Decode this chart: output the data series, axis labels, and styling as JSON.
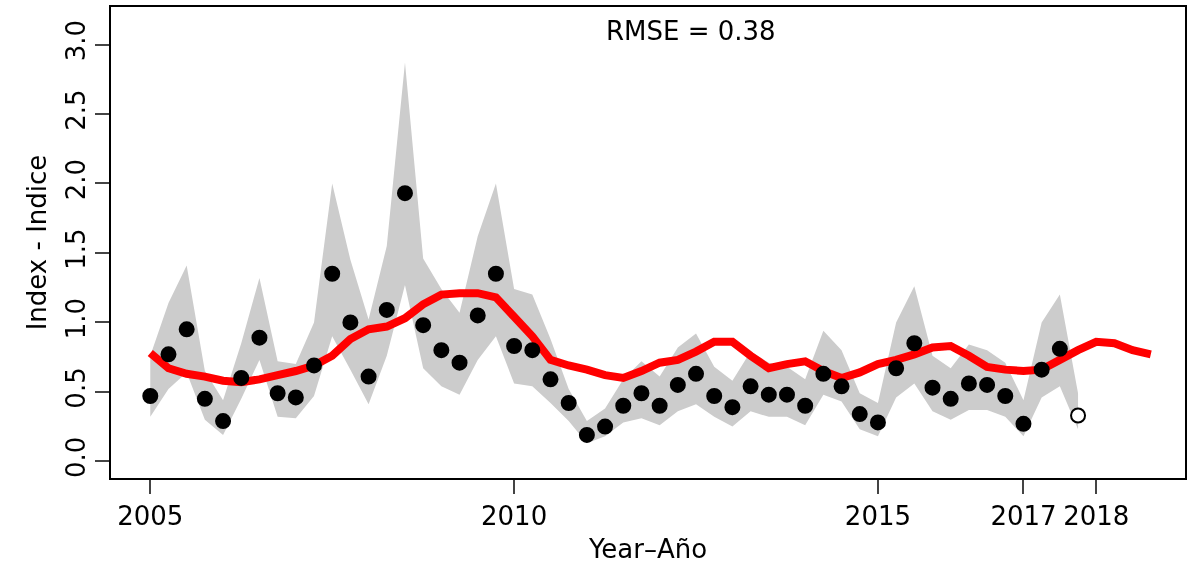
{
  "chart_data": {
    "type": "scatter",
    "xlabel": "Year–Año",
    "ylabel": "Index - Indice",
    "annotations": [
      "RMSE = 0.38"
    ],
    "xlim": [
      2004.46,
      2019.22
    ],
    "xticks": [
      2005,
      2010,
      2015,
      2017,
      2018
    ],
    "ylim": [
      -0.12,
      3.27
    ],
    "yticks": [
      {
        "value": 0,
        "label": "0.0"
      },
      0.5,
      {
        "value": 1,
        "label": "1.0"
      },
      1.5,
      {
        "value": 2,
        "label": "2.0"
      },
      2.5,
      {
        "value": 3,
        "label": "3.0"
      }
    ],
    "grid": false,
    "marker": "circle",
    "series": [
      {
        "color": "#000000",
        "x": [
          2005,
          2005.25,
          2005.5,
          2005.75,
          2006,
          2006.25,
          2006.5,
          2006.75,
          2007,
          2007.25,
          2007.5,
          2007.75,
          2008,
          2008.25,
          2008.5,
          2008.75,
          2009,
          2009.25,
          2009.5,
          2009.75,
          2010,
          2010.25,
          2010.5,
          2010.75,
          2011,
          2011.25,
          2011.5,
          2011.75,
          2012,
          2012.25,
          2012.5,
          2012.75,
          2013,
          2013.25,
          2013.5,
          2013.75,
          2014,
          2014.25,
          2014.5,
          2014.75,
          2015,
          2015.25,
          2015.5,
          2015.75,
          2016,
          2016.25,
          2016.5,
          2016.75,
          2017,
          2017.25,
          2017.5,
          2017.75
        ],
        "values": [
          0.47,
          0.77,
          0.95,
          0.45,
          0.29,
          0.6,
          0.89,
          0.49,
          0.46,
          0.69,
          1.35,
          1.0,
          0.61,
          1.09,
          1.93,
          0.98,
          0.8,
          0.71,
          1.05,
          1.35,
          0.83,
          0.8,
          0.59,
          0.42,
          0.19,
          0.25,
          0.4,
          0.49,
          0.4,
          0.55,
          0.63,
          0.47,
          0.39,
          0.54,
          0.48,
          0.48,
          0.4,
          0.63,
          0.54,
          0.34,
          0.28,
          0.67,
          0.85,
          0.53,
          0.45,
          0.56,
          0.55,
          0.47,
          0.27,
          0.66,
          0.81,
          null
        ],
        "lower": [
          0.32,
          0.52,
          0.64,
          0.3,
          0.19,
          0.45,
          0.73,
          0.32,
          0.31,
          0.47,
          0.9,
          0.66,
          0.41,
          0.76,
          1.27,
          0.67,
          0.54,
          0.48,
          0.73,
          0.9,
          0.56,
          0.54,
          0.42,
          0.29,
          0.13,
          0.18,
          0.28,
          0.31,
          0.26,
          0.36,
          0.41,
          0.32,
          0.25,
          0.36,
          0.32,
          0.32,
          0.26,
          0.48,
          0.43,
          0.23,
          0.18,
          0.46,
          0.56,
          0.36,
          0.3,
          0.37,
          0.37,
          0.32,
          0.18,
          0.46,
          0.54,
          0.23
        ],
        "upper": [
          0.76,
          1.14,
          1.41,
          0.65,
          0.44,
          0.85,
          1.32,
          0.72,
          0.7,
          1.0,
          2.0,
          1.45,
          1.02,
          1.55,
          2.87,
          1.46,
          1.24,
          1.07,
          1.62,
          2.0,
          1.24,
          1.2,
          0.88,
          0.52,
          0.29,
          0.38,
          0.59,
          0.72,
          0.61,
          0.82,
          0.92,
          0.68,
          0.58,
          0.79,
          0.71,
          0.68,
          0.59,
          0.94,
          0.8,
          0.49,
          0.42,
          1.0,
          1.26,
          0.76,
          0.67,
          0.84,
          0.8,
          0.71,
          0.44,
          1.0,
          1.2,
          0.49
        ]
      },
      {
        "color": "#ffffff",
        "x": [
          2017.75
        ],
        "values": [
          0.33
        ]
      },
      {
        "type": "line",
        "marker": "none",
        "color": "#ff0000",
        "x": [
          2005,
          2005.25,
          2005.5,
          2005.75,
          2006,
          2006.25,
          2006.5,
          2006.75,
          2007,
          2007.25,
          2007.5,
          2007.75,
          2008,
          2008.25,
          2008.5,
          2008.75,
          2009,
          2009.25,
          2009.5,
          2009.75,
          2010,
          2010.25,
          2010.5,
          2010.75,
          2011,
          2011.25,
          2011.5,
          2011.75,
          2012,
          2012.25,
          2012.5,
          2012.75,
          2013,
          2013.25,
          2013.5,
          2013.75,
          2014,
          2014.25,
          2014.5,
          2014.75,
          2015,
          2015.25,
          2015.5,
          2015.75,
          2016,
          2016.25,
          2016.5,
          2016.75,
          2017,
          2017.25,
          2017.5,
          2017.75,
          2018,
          2018.25,
          2018.5,
          2018.75
        ],
        "values": [
          0.78,
          0.67,
          0.63,
          0.61,
          0.58,
          0.57,
          0.59,
          0.62,
          0.65,
          0.69,
          0.76,
          0.88,
          0.95,
          0.97,
          1.03,
          1.13,
          1.2,
          1.21,
          1.21,
          1.18,
          1.04,
          0.9,
          0.73,
          0.69,
          0.66,
          0.62,
          0.6,
          0.65,
          0.71,
          0.73,
          0.79,
          0.86,
          0.86,
          0.76,
          0.67,
          0.7,
          0.72,
          0.65,
          0.6,
          0.64,
          0.7,
          0.73,
          0.77,
          0.82,
          0.83,
          0.76,
          0.68,
          0.66,
          0.65,
          0.66,
          0.73,
          0.8,
          0.86,
          0.85,
          0.8,
          0.77
        ]
      }
    ]
  }
}
